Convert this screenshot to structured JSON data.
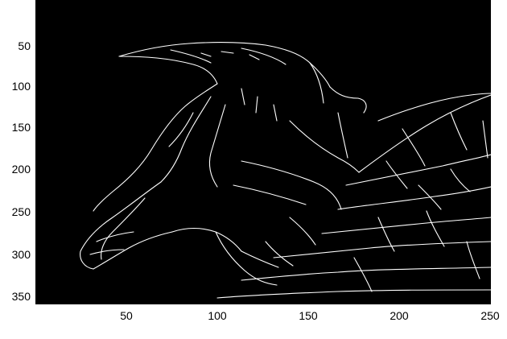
{
  "image": {
    "description_type": "edge-detected image plot",
    "background_color": "#000000",
    "edge_color": "#ffffff",
    "x_ticks": [
      "50",
      "100",
      "150",
      "200",
      "250"
    ],
    "y_ticks": [
      "50",
      "100",
      "150",
      "200",
      "250",
      "300",
      "350"
    ]
  }
}
